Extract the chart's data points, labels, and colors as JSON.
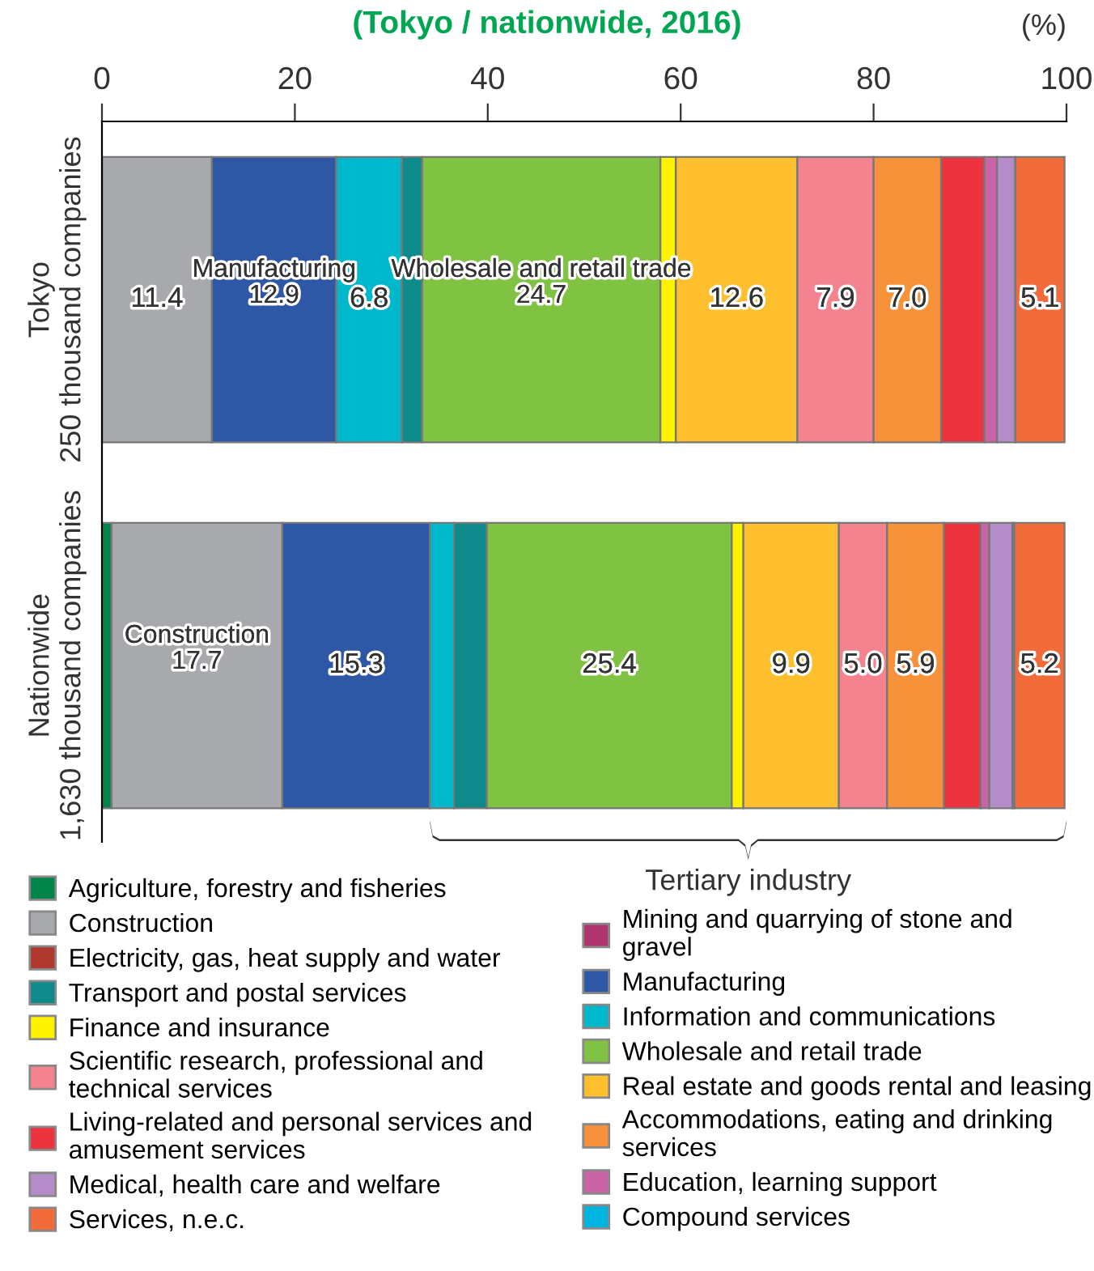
{
  "chart_data": {
    "type": "bar",
    "orientation": "horizontal",
    "stacked": true,
    "title": "(Tokyo / nationwide, 2016)",
    "xlabel": "(%)",
    "categories": [
      "Tokyo\n250 thousand companies",
      "Nationwide\n1,630 thousand companies"
    ],
    "xlim": [
      0,
      100
    ],
    "xticks": [
      0,
      20,
      40,
      60,
      80,
      100
    ],
    "grid": false,
    "legend": "bottom",
    "annotations": [
      "Tertiary industry"
    ],
    "series": [
      {
        "name": "Agriculture, forestry and fisheries",
        "color": "#00844a",
        "values": [
          0.0,
          1.0
        ],
        "value_labels": [
          null,
          null
        ]
      },
      {
        "name": "Mining and quarrying of stone and\ngravel",
        "color": "#b0346e",
        "values": [
          0.0,
          0.0
        ],
        "value_labels": [
          null,
          null
        ]
      },
      {
        "name": "Construction",
        "color": "#a7a9ac",
        "values": [
          11.4,
          17.7
        ],
        "value_labels": [
          "11.4",
          "Construction\n17.7"
        ]
      },
      {
        "name": "Manufacturing",
        "color": "#2e58a6",
        "values": [
          12.9,
          15.3
        ],
        "value_labels": [
          "Manufacturing\n12.9",
          "15.3"
        ]
      },
      {
        "name": "Electricity, gas, heat supply and water",
        "color": "#b0392f",
        "values": [
          null,
          null
        ],
        "value_labels": [
          null,
          null
        ]
      },
      {
        "name": "Information and communications",
        "color": "#00b8cc",
        "values": [
          6.8,
          2.5
        ],
        "value_labels": [
          "6.8",
          null
        ]
      },
      {
        "name": "Transport and postal services",
        "color": "#0e8a8a",
        "values": [
          2.1,
          3.4
        ],
        "value_labels": [
          null,
          null
        ]
      },
      {
        "name": "Wholesale and retail trade",
        "color": "#80c342",
        "values": [
          24.7,
          25.4
        ],
        "value_labels": [
          "Wholesale and retail trade\n24.7",
          "25.4"
        ]
      },
      {
        "name": "Finance and insurance",
        "color": "#fff200",
        "values": [
          1.6,
          1.2
        ],
        "value_labels": [
          null,
          null
        ]
      },
      {
        "name": "Real estate and goods rental and leasing",
        "color": "#fdbf2d",
        "values": [
          12.6,
          9.9
        ],
        "value_labels": [
          "12.6",
          "9.9"
        ]
      },
      {
        "name": "Scientific research, professional and\ntechnical services",
        "color": "#f2838f",
        "values": [
          7.9,
          5.0
        ],
        "value_labels": [
          "7.9",
          "5.0"
        ]
      },
      {
        "name": "Accommodations, eating and drinking\nservices",
        "color": "#f7923a",
        "values": [
          7.0,
          5.9
        ],
        "value_labels": [
          "7.0",
          "5.9"
        ]
      },
      {
        "name": "Living-related and personal services and\namusement services",
        "color": "#ed3340",
        "values": [
          4.5,
          3.8
        ],
        "value_labels": [
          null,
          null
        ]
      },
      {
        "name": "Education, learning support",
        "color": "#c964a8",
        "values": [
          1.3,
          0.9
        ],
        "value_labels": [
          null,
          null
        ]
      },
      {
        "name": "Medical, health care and welfare",
        "color": "#b48cc8",
        "values": [
          1.9,
          2.4
        ],
        "value_labels": [
          null,
          null
        ]
      },
      {
        "name": "Compound services",
        "color": "#00b4e0",
        "values": [
          null,
          0.2
        ],
        "value_labels": [
          null,
          null
        ]
      },
      {
        "name": "Services, n.e.c.",
        "color": "#f26b3a",
        "values": [
          5.1,
          5.2
        ],
        "value_labels": [
          "5.1",
          "5.2"
        ]
      }
    ]
  }
}
